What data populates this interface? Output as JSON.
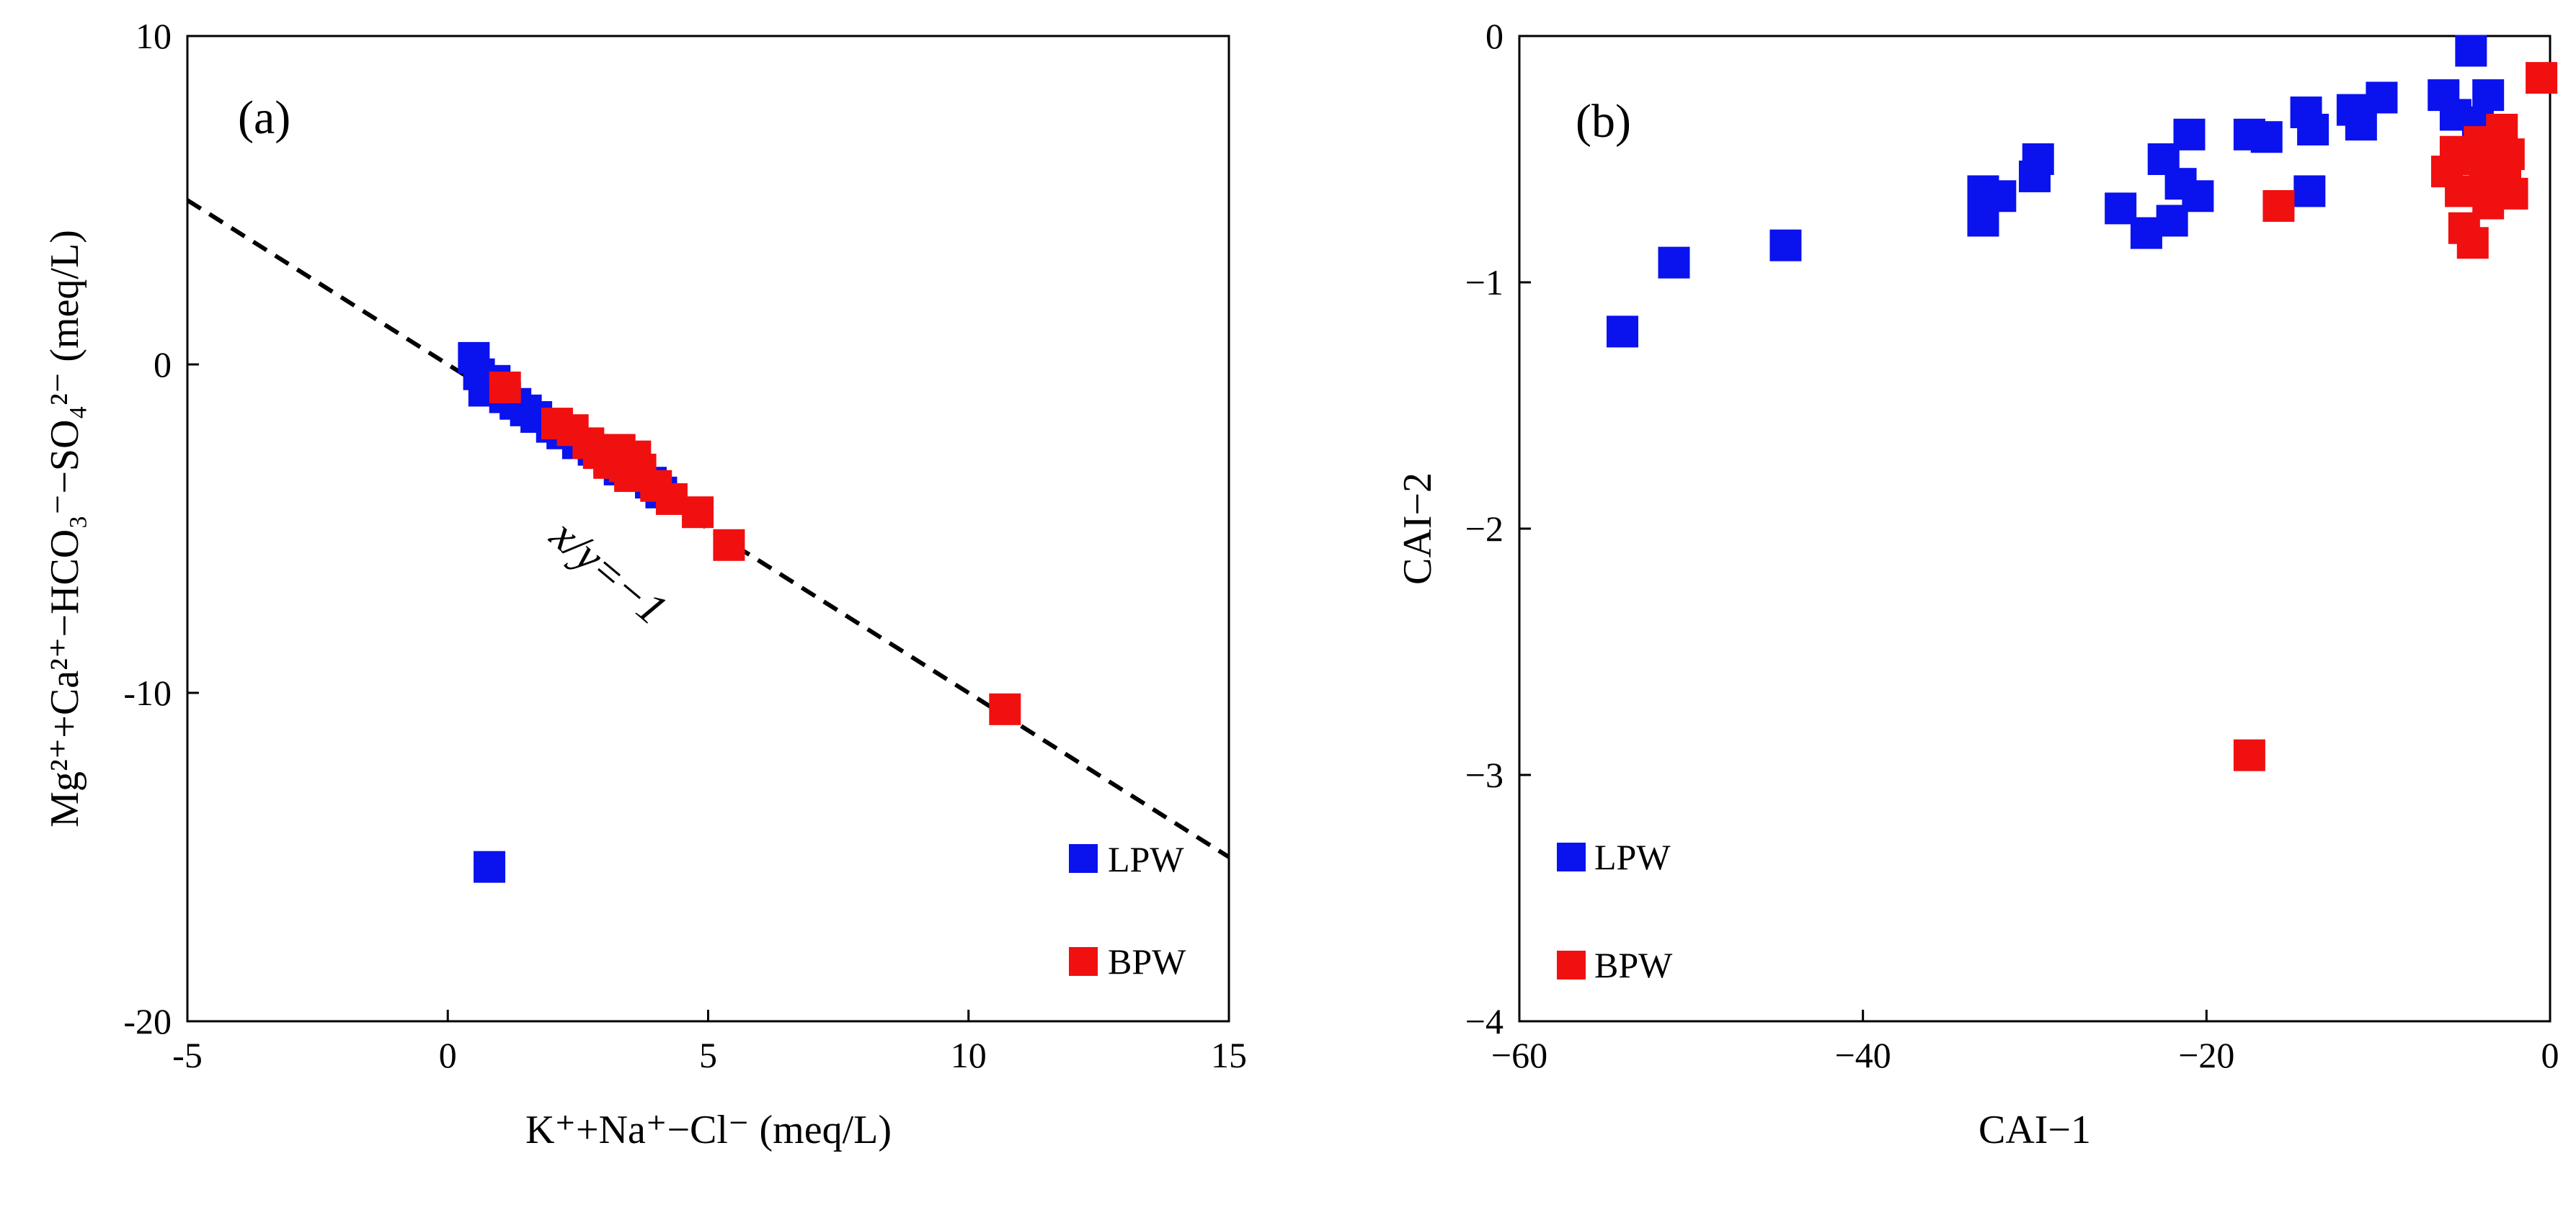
{
  "colors": {
    "lpw": "#0a12ee",
    "bpw": "#f01010",
    "axis": "#000000"
  },
  "chart_data": [
    {
      "type": "scatter",
      "panel_label": "(a)",
      "xlabel": "K⁺+Na⁺−Cl⁻ (meq/L)",
      "ylabel": "Mg²⁺+Ca²⁺−HCO₃⁻−SO₄²⁻ (meq/L)",
      "xlim": [
        -5,
        15
      ],
      "ylim": [
        -20,
        10
      ],
      "xticks": [
        "-5",
        "0",
        "5",
        "10",
        "15"
      ],
      "yticks": [
        "-20",
        "-10",
        "0",
        "10"
      ],
      "legend_position": "bottom-right",
      "reference_line": {
        "label": "x/y=−1",
        "slope": -1,
        "intercept": 0,
        "style": "dashed"
      },
      "series": [
        {
          "name": "LPW",
          "color_key": "lpw",
          "points": [
            [
              0.5,
              0.2
            ],
            [
              0.6,
              -0.3
            ],
            [
              0.7,
              -0.8
            ],
            [
              0.9,
              -0.5
            ],
            [
              1.1,
              -1.0
            ],
            [
              1.3,
              -1.2
            ],
            [
              1.5,
              -1.4
            ],
            [
              1.7,
              -1.6
            ],
            [
              2.0,
              -1.9
            ],
            [
              2.2,
              -2.1
            ],
            [
              2.5,
              -2.4
            ],
            [
              2.8,
              -2.6
            ],
            [
              3.1,
              -2.9
            ],
            [
              3.3,
              -3.2
            ],
            [
              3.6,
              -3.4
            ],
            [
              3.9,
              -3.6
            ],
            [
              4.1,
              -3.9
            ],
            [
              0.8,
              -15.3
            ]
          ]
        },
        {
          "name": "BPW",
          "color_key": "bpw",
          "points": [
            [
              1.1,
              -0.7
            ],
            [
              2.1,
              -1.8
            ],
            [
              2.4,
              -2.0
            ],
            [
              2.7,
              -2.4
            ],
            [
              2.9,
              -2.7
            ],
            [
              3.1,
              -3.0
            ],
            [
              3.3,
              -2.6
            ],
            [
              3.4,
              -3.1
            ],
            [
              3.5,
              -3.4
            ],
            [
              3.6,
              -2.8
            ],
            [
              3.7,
              -3.2
            ],
            [
              4.0,
              -3.7
            ],
            [
              4.3,
              -4.1
            ],
            [
              4.8,
              -4.5
            ],
            [
              5.4,
              -5.5
            ],
            [
              10.7,
              -10.5
            ]
          ]
        }
      ]
    },
    {
      "type": "scatter",
      "panel_label": "(b)",
      "xlabel": "CAI−1",
      "ylabel": "CAI−2",
      "xlim": [
        -60,
        0
      ],
      "ylim": [
        -4,
        0
      ],
      "xticks": [
        "−60",
        "−40",
        "−20",
        "0"
      ],
      "yticks": [
        "−4",
        "−3",
        "−2",
        "−1",
        "0"
      ],
      "legend_position": "bottom-left",
      "series": [
        {
          "name": "LPW",
          "color_key": "lpw",
          "points": [
            [
              -54,
              -1.2
            ],
            [
              -51,
              -0.92
            ],
            [
              -44.5,
              -0.85
            ],
            [
              -33,
              -0.75
            ],
            [
              -33,
              -0.63
            ],
            [
              -32,
              -0.65
            ],
            [
              -30,
              -0.57
            ],
            [
              -29.8,
              -0.5
            ],
            [
              -25,
              -0.7
            ],
            [
              -23.5,
              -0.8
            ],
            [
              -22.5,
              -0.5
            ],
            [
              -22,
              -0.75
            ],
            [
              -21.5,
              -0.6
            ],
            [
              -21,
              -0.4
            ],
            [
              -20.5,
              -0.65
            ],
            [
              -17.5,
              -0.4
            ],
            [
              -16.5,
              -0.41
            ],
            [
              -14.2,
              -0.31
            ],
            [
              -14,
              -0.63
            ],
            [
              -13.8,
              -0.38
            ],
            [
              -11.5,
              -0.3
            ],
            [
              -11,
              -0.36
            ],
            [
              -9.8,
              -0.25
            ],
            [
              -6.2,
              -0.24
            ],
            [
              -5.5,
              -0.32
            ],
            [
              -4.6,
              -0.06
            ],
            [
              -4.2,
              -0.35
            ],
            [
              -3.6,
              -0.24
            ],
            [
              -3.2,
              -0.42
            ]
          ]
        },
        {
          "name": "BPW",
          "color_key": "bpw",
          "points": [
            [
              -17.5,
              -2.92
            ],
            [
              -15.8,
              -0.69
            ],
            [
              -6.0,
              -0.55
            ],
            [
              -5.5,
              -0.47
            ],
            [
              -5.2,
              -0.63
            ],
            [
              -5.0,
              -0.78
            ],
            [
              -4.5,
              -0.84
            ],
            [
              -4.4,
              -0.5
            ],
            [
              -4.1,
              -0.43
            ],
            [
              -3.8,
              -0.58
            ],
            [
              -3.6,
              -0.68
            ],
            [
              -3.4,
              -0.44
            ],
            [
              -3.2,
              -0.52
            ],
            [
              -3.0,
              -0.62
            ],
            [
              -2.8,
              -0.38
            ],
            [
              -2.6,
              -0.55
            ],
            [
              -2.4,
              -0.48
            ],
            [
              -2.2,
              -0.64
            ],
            [
              -0.5,
              -0.17
            ]
          ]
        }
      ]
    }
  ]
}
